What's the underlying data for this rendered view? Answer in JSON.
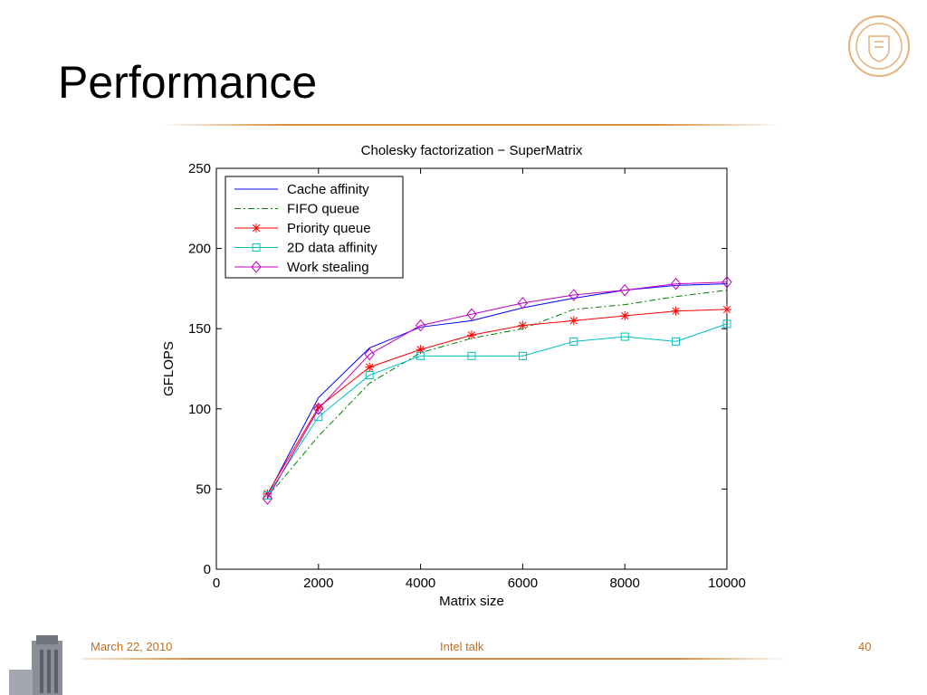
{
  "slide": {
    "title": "Performance",
    "footer_date": "March 22, 2010",
    "footer_center": "Intel talk",
    "page_number": "40"
  },
  "colors": {
    "accent": "#d98f3f",
    "footer_text": "#c07020"
  },
  "icons": {
    "seal": "university-seal-icon",
    "tower": "tower-image-icon"
  },
  "chart_data": {
    "type": "line",
    "title": "Cholesky factorization − SuperMatrix",
    "xlabel": "Matrix size",
    "ylabel": "GFLOPS",
    "xlim": [
      0,
      10000
    ],
    "ylim": [
      0,
      250
    ],
    "xticks": [
      0,
      2000,
      4000,
      6000,
      8000,
      10000
    ],
    "yticks": [
      0,
      50,
      100,
      150,
      200,
      250
    ],
    "grid": false,
    "legend_position": "top-left",
    "x": [
      1000,
      2000,
      3000,
      4000,
      5000,
      6000,
      7000,
      8000,
      9000,
      10000
    ],
    "series": [
      {
        "name": "Cache affinity",
        "color": "#0000ff",
        "style": "solid",
        "marker": "none",
        "values": [
          46,
          107,
          138,
          151,
          155,
          163,
          169,
          174,
          177,
          178
        ]
      },
      {
        "name": "FIFO queue",
        "color": "#008000",
        "style": "dashdot",
        "marker": "none",
        "values": [
          45,
          83,
          116,
          135,
          144,
          150,
          162,
          165,
          170,
          174
        ]
      },
      {
        "name": "Priority queue",
        "color": "#ff0000",
        "style": "solid",
        "marker": "star",
        "values": [
          47,
          101,
          126,
          137,
          146,
          152,
          155,
          158,
          161,
          162
        ]
      },
      {
        "name": "2D data affinity",
        "color": "#00bfbf",
        "style": "solid",
        "marker": "square",
        "values": [
          46,
          95,
          121,
          133,
          133,
          133,
          142,
          145,
          142,
          153
        ]
      },
      {
        "name": "Work stealing",
        "color": "#bf00bf",
        "style": "solid",
        "marker": "diamond",
        "values": [
          44,
          100,
          134,
          152,
          159,
          166,
          171,
          174,
          178,
          179
        ]
      }
    ]
  }
}
